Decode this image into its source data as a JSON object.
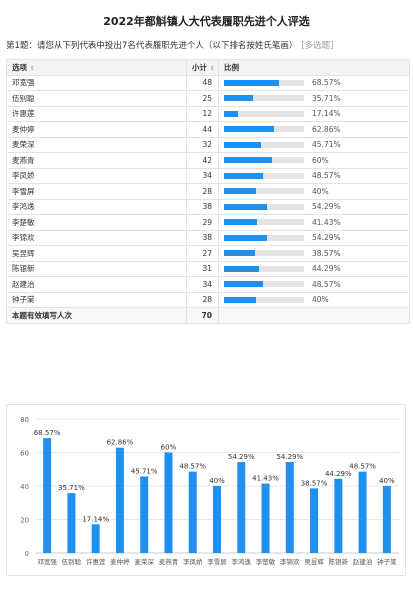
{
  "title": "2022年都斛镇人大代表履职先进个人评选",
  "question": {
    "number_label": "第1题：",
    "text": "请您从下列代表中投出7名代表履职先进个人（以下排名按姓氏笔画）",
    "type_label": "[多选题]"
  },
  "table": {
    "headers": {
      "option": "选项",
      "count": "小计",
      "ratio": "比例"
    },
    "sort_icon": "sort-arrows-icon",
    "total_label": "本题有效填写人次",
    "total_value": "70"
  },
  "accent_color": "#1e90f0",
  "chart_data": {
    "type": "bar",
    "categories": [
      "邓宽强",
      "伍别聪",
      "许惠莲",
      "麦仲婷",
      "麦荣深",
      "麦燕青",
      "李凤娇",
      "李雪屏",
      "李鸿逸",
      "李楚敏",
      "李锦欢",
      "吴昱辉",
      "陈银新",
      "赵建治",
      "钟子棠"
    ],
    "counts": [
      48,
      25,
      12,
      44,
      32,
      42,
      34,
      28,
      38,
      29,
      38,
      27,
      31,
      34,
      28
    ],
    "values": [
      68.57,
      35.71,
      17.14,
      62.86,
      45.71,
      60,
      48.57,
      40,
      54.29,
      41.43,
      54.29,
      38.57,
      44.29,
      48.57,
      40
    ],
    "labels": [
      "68.57%",
      "35.71%",
      "17.14%",
      "62.86%",
      "45.71%",
      "60%",
      "48.57%",
      "40%",
      "54.29%",
      "41.43%",
      "54.29%",
      "38.57%",
      "44.29%",
      "48.57%",
      "40%"
    ],
    "ylim": [
      0,
      80
    ],
    "yticks": [
      "0",
      "20",
      "40",
      "60",
      "80"
    ],
    "grid": true,
    "bar_color": "#1e90f0"
  }
}
